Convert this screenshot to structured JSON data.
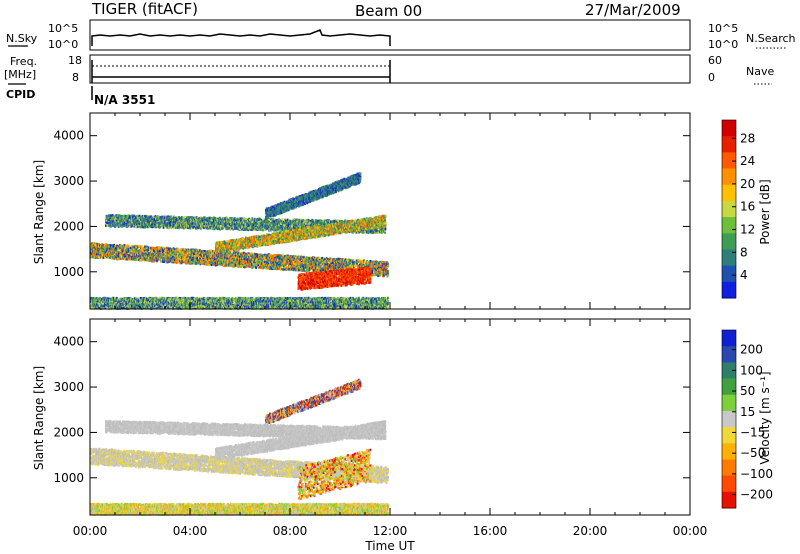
{
  "header": {
    "title": "TIGER (fitACF)",
    "beam": "Beam 00",
    "date": "27/Mar/2009"
  },
  "strip": {
    "nsky_label": "N.Sky",
    "nsearch_label": "N.Search",
    "freq_label_1": "Freq.",
    "freq_label_2": "[MHz]",
    "nave_label": "Nave",
    "cpid_label": "CPID",
    "cpid_value": "N/A 3551",
    "noise_ticks_left": [
      "10^5",
      "10^0"
    ],
    "noise_ticks_right": [
      "10^5",
      "10^0"
    ],
    "freq_ticks": [
      "18",
      "8"
    ],
    "nave_ticks": [
      "60",
      "0"
    ]
  },
  "chart_data": [
    {
      "type": "heatmap",
      "panel": "power",
      "ylabel": "Slant Range [km]",
      "yticks": [
        "1000",
        "2000",
        "3000",
        "4000"
      ],
      "ylim": [
        180,
        4500
      ],
      "xlim": [
        0,
        24
      ],
      "colorbar": {
        "label": "Power [dB]",
        "ticks": [
          "4",
          "8",
          "12",
          "16",
          "20",
          "24",
          "28"
        ],
        "colors": [
          "#1020e0",
          "#2050b0",
          "#2e7f7a",
          "#3e9c55",
          "#6cc03c",
          "#c8d840",
          "#ffc000",
          "#ff9000",
          "#ff5a00",
          "#e81e00",
          "#d00000"
        ]
      },
      "bands": [
        {
          "t0": 0.0,
          "t1": 11.9,
          "r0": 1500,
          "r1": 1080,
          "w": 200,
          "cells": [
            {
              "v": 4,
              "c": "#1a2fcc"
            },
            {
              "v": 8,
              "c": "#2e7f7a"
            },
            {
              "v": 20,
              "c": "#ffc000"
            },
            {
              "v": 24,
              "c": "#ff6a00"
            },
            {
              "v": 16,
              "c": "#6cc03c"
            }
          ]
        },
        {
          "t0": 0.6,
          "t1": 11.8,
          "r0": 2150,
          "r1": 2000,
          "w": 160,
          "cells": [
            {
              "v": 4,
              "c": "#1a2fcc"
            },
            {
              "v": 8,
              "c": "#2e7f7a"
            },
            {
              "v": 12,
              "c": "#3e9c55"
            },
            {
              "v": 18,
              "c": "#c8d840"
            }
          ]
        },
        {
          "t0": 5.0,
          "t1": 11.8,
          "r0": 1550,
          "r1": 2150,
          "w": 150,
          "cells": [
            {
              "v": 16,
              "c": "#6cc03c"
            },
            {
              "v": 20,
              "c": "#ffc000"
            },
            {
              "v": 24,
              "c": "#ff6a00"
            },
            {
              "v": 8,
              "c": "#2e7f7a"
            }
          ]
        },
        {
          "t0": 8.3,
          "t1": 11.2,
          "r0": 800,
          "r1": 950,
          "w": 220,
          "cells": [
            {
              "v": 28,
              "c": "#e81e00"
            },
            {
              "v": 26,
              "c": "#ff3a00"
            },
            {
              "v": 24,
              "c": "#ff6a00"
            },
            {
              "v": 30,
              "c": "#d00000"
            }
          ]
        },
        {
          "t0": 7.0,
          "t1": 10.8,
          "r0": 2300,
          "r1": 3100,
          "w": 140,
          "cells": [
            {
              "v": 4,
              "c": "#1a2fcc"
            },
            {
              "v": 8,
              "c": "#2e7f7a"
            },
            {
              "v": 12,
              "c": "#3e9c55"
            }
          ]
        },
        {
          "t0": 0.0,
          "t1": 11.9,
          "r0": 330,
          "r1": 330,
          "w": 150,
          "cells": [
            {
              "v": 16,
              "c": "#6cc03c"
            },
            {
              "v": 8,
              "c": "#2e7f7a"
            },
            {
              "v": 4,
              "c": "#1a2fcc"
            },
            {
              "v": 20,
              "c": "#c8d840"
            }
          ]
        }
      ]
    },
    {
      "type": "heatmap",
      "panel": "velocity",
      "ylabel": "Slant Range [km]",
      "yticks": [
        "1000",
        "2000",
        "3000",
        "4000"
      ],
      "ylim": [
        180,
        4500
      ],
      "xlim": [
        0,
        24
      ],
      "xticks": [
        "00:00",
        "04:00",
        "08:00",
        "12:00",
        "16:00",
        "20:00",
        "00:00"
      ],
      "xlabel": "Time UT",
      "colorbar": {
        "label": "Velocity [m s⁻¹]",
        "ticks": [
          "200",
          "100",
          "50",
          "15",
          "−15",
          "−50",
          "−100",
          "−200"
        ],
        "colors": [
          "#1020d0",
          "#2a48b0",
          "#2e7f6a",
          "#40a040",
          "#7cd03c",
          "#c8c8c8",
          "#f0d838",
          "#ffb000",
          "#ff7a00",
          "#ff4a00",
          "#e81000"
        ]
      },
      "bands": [
        {
          "t0": 0.0,
          "t1": 11.9,
          "r0": 1500,
          "r1": 1080,
          "w": 220,
          "cells": [
            {
              "v": 0,
              "c": "#c8c8c8"
            },
            {
              "v": 0,
              "c": "#bdbdbd"
            },
            {
              "v": -15,
              "c": "#f0d838"
            }
          ]
        },
        {
          "t0": 0.6,
          "t1": 11.8,
          "r0": 2150,
          "r1": 2000,
          "w": 160,
          "cells": [
            {
              "v": 0,
              "c": "#c8c8c8"
            },
            {
              "v": 0,
              "c": "#bdbdbd"
            }
          ]
        },
        {
          "t0": 5.0,
          "t1": 11.8,
          "r0": 1550,
          "r1": 2150,
          "w": 160,
          "cells": [
            {
              "v": 0,
              "c": "#c8c8c8"
            },
            {
              "v": 0,
              "c": "#bdbdbd"
            }
          ]
        },
        {
          "t0": 8.3,
          "t1": 11.2,
          "r0": 900,
          "r1": 1300,
          "w": 450,
          "cells": [
            {
              "v": -50,
              "c": "#ffb000"
            },
            {
              "v": -15,
              "c": "#f0d838"
            },
            {
              "v": 30,
              "c": "#7cd03c"
            },
            {
              "v": -100,
              "c": "#ff7a00"
            },
            {
              "v": -200,
              "c": "#e81000"
            },
            {
              "v": 0,
              "c": "#c8c8c8"
            }
          ]
        },
        {
          "t0": 7.0,
          "t1": 10.8,
          "r0": 2300,
          "r1": 3100,
          "w": 130,
          "cells": [
            {
              "v": 0,
              "c": "#c8c8c8"
            },
            {
              "v": -50,
              "c": "#ffb000"
            },
            {
              "v": -200,
              "c": "#e81000"
            },
            {
              "v": 100,
              "c": "#2a48b0"
            }
          ]
        },
        {
          "t0": 0.0,
          "t1": 11.9,
          "r0": 330,
          "r1": 330,
          "w": 150,
          "cells": [
            {
              "v": 0,
              "c": "#c8c8c8"
            },
            {
              "v": -15,
              "c": "#f0d838"
            },
            {
              "v": 30,
              "c": "#7cd03c"
            },
            {
              "v": -50,
              "c": "#ffb000"
            }
          ]
        }
      ]
    }
  ]
}
